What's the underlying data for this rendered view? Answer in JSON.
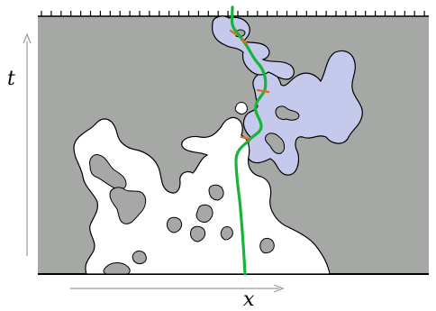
{
  "figure": {
    "axes": {
      "horizontal_label": "x",
      "vertical_label": "t"
    },
    "colors": {
      "background_region": "#a6a8a6",
      "white_clusters": "#ffffff",
      "blue_clusters": "#c5c9ec",
      "path": "#16b53a",
      "crossing_points": "#e06b1f",
      "boundary": "#000000",
      "arrows": "#9a9a9a"
    }
  }
}
